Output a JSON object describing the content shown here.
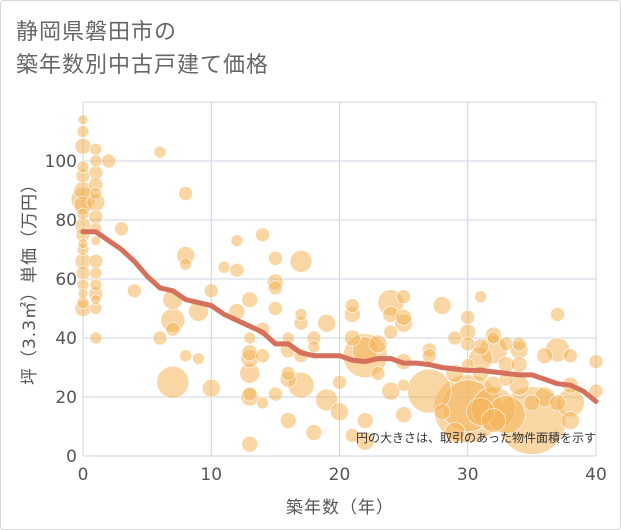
{
  "title_line1": "静岡県磐田市の",
  "title_line2": "築年数別中古戸建て価格",
  "chart_data": {
    "type": "scatter",
    "title": "静岡県磐田市の築年数別中古戸建て価格",
    "xlabel": "築年数（年）",
    "ylabel": "坪（3.3㎡）単価（万円）",
    "xlim": [
      0,
      40
    ],
    "ylim": [
      0,
      120
    ],
    "xticks": [
      "0",
      "10",
      "20",
      "30",
      "40"
    ],
    "yticks": [
      "0",
      "20",
      "40",
      "60",
      "80",
      "100"
    ],
    "note": "円の大きさは、取引のあった物件面積を示す",
    "colors": {
      "bubble": "#f4b45a",
      "line": "#d4705c",
      "grid": "#c8d4e0"
    },
    "points": [
      [
        0,
        114,
        5
      ],
      [
        0,
        110,
        6
      ],
      [
        0,
        105,
        8
      ],
      [
        0,
        98,
        6
      ],
      [
        0,
        95,
        7
      ],
      [
        0,
        90,
        9
      ],
      [
        0,
        87,
        12
      ],
      [
        0,
        85,
        9
      ],
      [
        0,
        82,
        6
      ],
      [
        0,
        78,
        8
      ],
      [
        0,
        75,
        7
      ],
      [
        0,
        72,
        5
      ],
      [
        0,
        70,
        6
      ],
      [
        0,
        66,
        8
      ],
      [
        0,
        62,
        7
      ],
      [
        0,
        58,
        6
      ],
      [
        0,
        55,
        5
      ],
      [
        0,
        52,
        6
      ],
      [
        0,
        50,
        8
      ],
      [
        1,
        104,
        6
      ],
      [
        1,
        100,
        6
      ],
      [
        1,
        96,
        7
      ],
      [
        1,
        92,
        7
      ],
      [
        1,
        89,
        6
      ],
      [
        1,
        86,
        9
      ],
      [
        1,
        81,
        7
      ],
      [
        1,
        77,
        6
      ],
      [
        1,
        73,
        5
      ],
      [
        1,
        66,
        7
      ],
      [
        1,
        62,
        6
      ],
      [
        1,
        58,
        6
      ],
      [
        1,
        55,
        7
      ],
      [
        1,
        53,
        5
      ],
      [
        1,
        50,
        6
      ],
      [
        1,
        40,
        6
      ],
      [
        2,
        100,
        7
      ],
      [
        3,
        77,
        7
      ],
      [
        4,
        56,
        7
      ],
      [
        6,
        103,
        6
      ],
      [
        6,
        40,
        7
      ],
      [
        7,
        25,
        16
      ],
      [
        7,
        46,
        12
      ],
      [
        7,
        53,
        10
      ],
      [
        7,
        43,
        7
      ],
      [
        8,
        89,
        7
      ],
      [
        8,
        68,
        9
      ],
      [
        8,
        65,
        6
      ],
      [
        8,
        34,
        6
      ],
      [
        9,
        49,
        10
      ],
      [
        9,
        33,
        6
      ],
      [
        10,
        56,
        7
      ],
      [
        10,
        23,
        9
      ],
      [
        11,
        64,
        6
      ],
      [
        12,
        73,
        6
      ],
      [
        12,
        63,
        7
      ],
      [
        12,
        49,
        8
      ],
      [
        13,
        53,
        8
      ],
      [
        13,
        40,
        6
      ],
      [
        13,
        35,
        8
      ],
      [
        13,
        33,
        9
      ],
      [
        13,
        28,
        10
      ],
      [
        13,
        21,
        7
      ],
      [
        13,
        20,
        9
      ],
      [
        13,
        4,
        8
      ],
      [
        14,
        75,
        7
      ],
      [
        14,
        43,
        7
      ],
      [
        14,
        34,
        7
      ],
      [
        14,
        18,
        6
      ],
      [
        15,
        67,
        7
      ],
      [
        15,
        59,
        8
      ],
      [
        15,
        57,
        7
      ],
      [
        15,
        50,
        7
      ],
      [
        15,
        21,
        7
      ],
      [
        16,
        40,
        6
      ],
      [
        16,
        36,
        8
      ],
      [
        16,
        28,
        7
      ],
      [
        16,
        26,
        8
      ],
      [
        16,
        12,
        8
      ],
      [
        17,
        66,
        11
      ],
      [
        17,
        48,
        6
      ],
      [
        17,
        45,
        7
      ],
      [
        17,
        34,
        7
      ],
      [
        17,
        24,
        13
      ],
      [
        18,
        40,
        7
      ],
      [
        18,
        37,
        6
      ],
      [
        18,
        8,
        8
      ],
      [
        19,
        45,
        9
      ],
      [
        19,
        19,
        11
      ],
      [
        20,
        25,
        7
      ],
      [
        20,
        15,
        9
      ],
      [
        21,
        51,
        7
      ],
      [
        21,
        48,
        8
      ],
      [
        21,
        40,
        8
      ],
      [
        21,
        7,
        7
      ],
      [
        22,
        36,
        13
      ],
      [
        22,
        34,
        22
      ],
      [
        22,
        5,
        9
      ],
      [
        22,
        12,
        8
      ],
      [
        23,
        38,
        9
      ],
      [
        23,
        28,
        7
      ],
      [
        24,
        52,
        13
      ],
      [
        24,
        48,
        8
      ],
      [
        24,
        42,
        7
      ],
      [
        24,
        22,
        9
      ],
      [
        25,
        54,
        7
      ],
      [
        25,
        47,
        8
      ],
      [
        25,
        45,
        9
      ],
      [
        25,
        32,
        8
      ],
      [
        25,
        24,
        6
      ],
      [
        25,
        14,
        8
      ],
      [
        27,
        36,
        7
      ],
      [
        27,
        34,
        7
      ],
      [
        27,
        22,
        22
      ],
      [
        28,
        51,
        9
      ],
      [
        28,
        15,
        8
      ],
      [
        29,
        40,
        7
      ],
      [
        29,
        28,
        9
      ],
      [
        29,
        8,
        10
      ],
      [
        30,
        47,
        7
      ],
      [
        30,
        42,
        8
      ],
      [
        30,
        38,
        7
      ],
      [
        30,
        31,
        6
      ],
      [
        30,
        17,
        26
      ],
      [
        30,
        16,
        34
      ],
      [
        31,
        54,
        6
      ],
      [
        31,
        37,
        8
      ],
      [
        31,
        33,
        12
      ],
      [
        31,
        28,
        8
      ],
      [
        31,
        15,
        14
      ],
      [
        32,
        41,
        8
      ],
      [
        32,
        40,
        6
      ],
      [
        32,
        36,
        14
      ],
      [
        32,
        24,
        9
      ],
      [
        32,
        16,
        22
      ],
      [
        32,
        12,
        12
      ],
      [
        33,
        38,
        7
      ],
      [
        33,
        31,
        8
      ],
      [
        33,
        26,
        7
      ],
      [
        33,
        14,
        19
      ],
      [
        34,
        38,
        7
      ],
      [
        34,
        36,
        9
      ],
      [
        34,
        31,
        8
      ],
      [
        34,
        24,
        10
      ],
      [
        35,
        18,
        8
      ],
      [
        35,
        12,
        34
      ],
      [
        36,
        34,
        8
      ],
      [
        36,
        20,
        10
      ],
      [
        37,
        48,
        7
      ],
      [
        37,
        36,
        12
      ],
      [
        37,
        18,
        8
      ],
      [
        38,
        34,
        7
      ],
      [
        38,
        24,
        8
      ],
      [
        38,
        18,
        14
      ],
      [
        38,
        12,
        9
      ],
      [
        40,
        32,
        7
      ],
      [
        40,
        22,
        7
      ]
    ],
    "trend": [
      [
        0,
        76
      ],
      [
        1,
        76
      ],
      [
        2,
        73
      ],
      [
        3,
        70
      ],
      [
        4,
        66
      ],
      [
        5,
        61
      ],
      [
        6,
        57
      ],
      [
        7,
        56
      ],
      [
        8,
        53
      ],
      [
        9,
        52
      ],
      [
        10,
        51
      ],
      [
        11,
        48
      ],
      [
        12,
        46
      ],
      [
        13,
        44
      ],
      [
        14,
        42
      ],
      [
        15,
        38
      ],
      [
        16,
        38
      ],
      [
        17,
        35
      ],
      [
        18,
        34
      ],
      [
        19,
        34
      ],
      [
        20,
        34
      ],
      [
        21,
        32.5
      ],
      [
        22,
        32
      ],
      [
        23,
        33
      ],
      [
        24,
        33
      ],
      [
        25,
        31.5
      ],
      [
        26,
        31.5
      ],
      [
        27,
        31
      ],
      [
        28,
        30
      ],
      [
        29,
        29.5
      ],
      [
        30,
        29
      ],
      [
        31,
        29
      ],
      [
        32,
        28.5
      ],
      [
        33,
        28
      ],
      [
        34,
        27.5
      ],
      [
        35,
        27.5
      ],
      [
        36,
        26
      ],
      [
        37,
        24.5
      ],
      [
        38,
        24
      ],
      [
        39,
        22
      ],
      [
        40,
        18.5
      ]
    ]
  }
}
